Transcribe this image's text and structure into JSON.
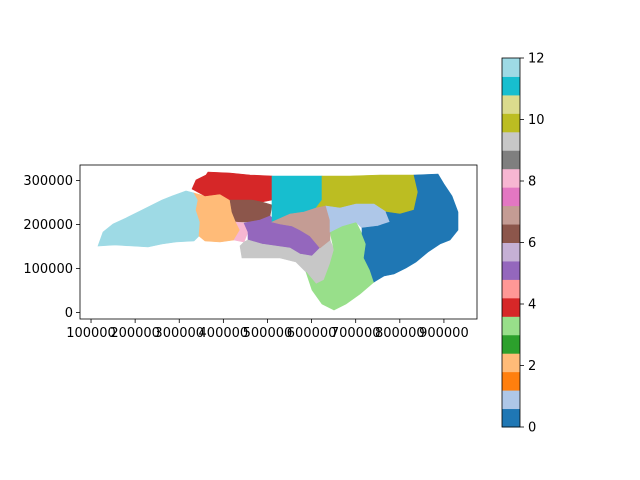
{
  "map": {
    "x_ticks": [
      "100000",
      "200000",
      "300000",
      "400000",
      "500000",
      "600000",
      "700000",
      "800000",
      "900000"
    ],
    "y_ticks": [
      "0",
      "100000",
      "200000",
      "300000"
    ],
    "x_lim": [
      75000,
      975000
    ],
    "y_lim": [
      -15000,
      335000
    ]
  },
  "colorbar": {
    "ticks": [
      "0",
      "2",
      "4",
      "6",
      "8",
      "10",
      "12"
    ],
    "min": 0,
    "max": 12,
    "colors": [
      "#1f77b4",
      "#aec7e8",
      "#ff7f0e",
      "#ffbb78",
      "#2ca02c",
      "#98df8a",
      "#d62728",
      "#ff9896",
      "#9467bd",
      "#c5b0d5",
      "#8c564b",
      "#c49c94",
      "#e377c2",
      "#f7b6d2",
      "#7f7f7f",
      "#c7c7c7",
      "#bcbd22",
      "#dbdb8d",
      "#17becf",
      "#9edae5"
    ]
  },
  "districts": [
    {
      "id": "district-1",
      "color": "#9edae5"
    },
    {
      "id": "district-2",
      "color": "#ffbb78"
    },
    {
      "id": "district-3",
      "color": "#d62728"
    },
    {
      "id": "district-4",
      "color": "#8c564b"
    },
    {
      "id": "district-5",
      "color": "#f7b6d2"
    },
    {
      "id": "district-6",
      "color": "#9467bd"
    },
    {
      "id": "district-7",
      "color": "#c7c7c7"
    },
    {
      "id": "district-8",
      "color": "#98df8a"
    },
    {
      "id": "district-9",
      "color": "#17becf"
    },
    {
      "id": "district-10",
      "color": "#bcbd22"
    },
    {
      "id": "district-11",
      "color": "#c49c94"
    },
    {
      "id": "district-12",
      "color": "#aec7e8"
    },
    {
      "id": "district-13",
      "color": "#1f77b4"
    }
  ]
}
